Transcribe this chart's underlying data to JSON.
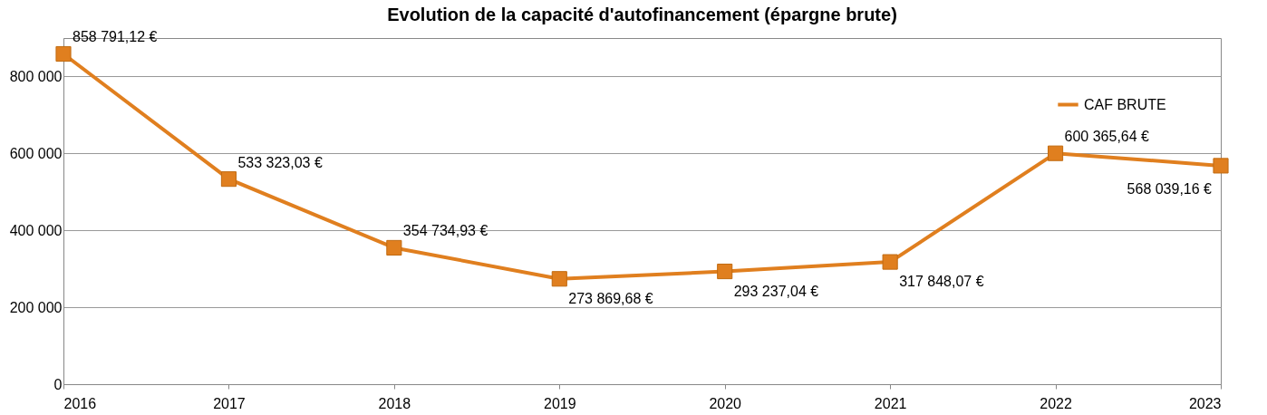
{
  "chart_data": {
    "type": "line",
    "title": "Evolution de la capacité d'autofinancement (épargne brute)",
    "x": [
      2016,
      2017,
      2018,
      2019,
      2020,
      2021,
      2022,
      2023
    ],
    "series": [
      {
        "name": "CAF BRUTE",
        "color": "#e07f1f",
        "values": [
          858791.12,
          533323.03,
          354734.93,
          273869.68,
          293237.04,
          317848.07,
          600365.64,
          568039.16
        ],
        "value_labels": [
          "858 791,12 €",
          "533 323,03 €",
          "354 734,93 €",
          "273 869,68 €",
          "293 237,04 €",
          "317 848,07 €",
          "600 365,64 €",
          "568 039,16 €"
        ]
      }
    ],
    "xlim": [
      2016,
      2023
    ],
    "xticks": [
      2016,
      2017,
      2018,
      2019,
      2020,
      2021,
      2022,
      2023
    ],
    "ylim": [
      0,
      900000
    ],
    "yticks": [
      {
        "value": 0,
        "label": "0"
      },
      {
        "value": 200000,
        "label": "200 000"
      },
      {
        "value": 400000,
        "label": "400 000"
      },
      {
        "value": 600000,
        "label": "600 000"
      },
      {
        "value": 800000,
        "label": "800 000"
      }
    ],
    "grid": "y",
    "legend": "top right",
    "marker": "square",
    "line_style": "solid"
  }
}
